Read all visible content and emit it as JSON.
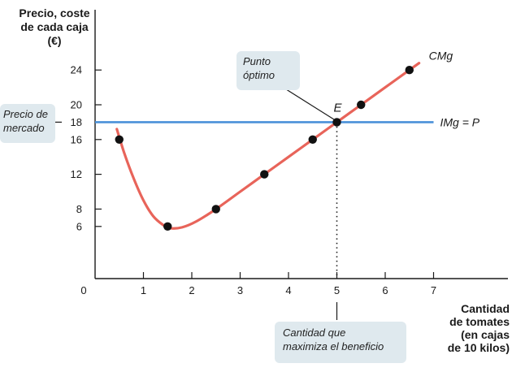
{
  "chart_data": {
    "type": "line",
    "ylabel_lines": [
      "Precio, coste",
      "de cada caja",
      "(€)"
    ],
    "xlabel_lines": [
      "Cantidad",
      "de tomates",
      "(en cajas",
      "de 10 kilos)"
    ],
    "x_ticks": [
      0,
      1,
      2,
      3,
      4,
      5,
      6,
      7
    ],
    "y_ticks": [
      6,
      8,
      12,
      16,
      18,
      20,
      24
    ],
    "xlim": [
      0,
      8.5
    ],
    "ylim": [
      0,
      28
    ],
    "grid": false,
    "series": [
      {
        "name": "CMg",
        "color": "#e8645a",
        "curve": [
          [
            0.45,
            17.2
          ],
          [
            0.6,
            14.5
          ],
          [
            0.8,
            11.5
          ],
          [
            1.0,
            9.0
          ],
          [
            1.2,
            7.2
          ],
          [
            1.4,
            6.2
          ],
          [
            1.55,
            5.8
          ],
          [
            1.8,
            5.9
          ],
          [
            2.1,
            6.6
          ],
          [
            2.5,
            8.0
          ],
          [
            3.0,
            10.0
          ],
          [
            3.5,
            12.0
          ],
          [
            4.0,
            14.0
          ],
          [
            4.5,
            16.0
          ],
          [
            5.0,
            18.0
          ],
          [
            5.5,
            20.0
          ],
          [
            6.0,
            22.0
          ],
          [
            6.5,
            24.0
          ],
          [
            6.7,
            24.8
          ]
        ],
        "points": [
          [
            0.5,
            16
          ],
          [
            1.5,
            6
          ],
          [
            2.5,
            8
          ],
          [
            3.5,
            12
          ],
          [
            4.5,
            16
          ],
          [
            5,
            18
          ],
          [
            5.5,
            20
          ],
          [
            6.5,
            24
          ]
        ]
      },
      {
        "name": "IMg = P",
        "color": "#4a90d9",
        "y": 18,
        "x_range": [
          0,
          7
        ]
      }
    ],
    "optimum": {
      "label": "E",
      "x": 5,
      "y": 18
    },
    "annotations": {
      "market_price": [
        "Precio de",
        "mercado"
      ],
      "optimal_point": [
        "Punto",
        "óptimo"
      ],
      "profit_quantity": [
        "Cantidad que",
        "maximiza el beneficio"
      ]
    }
  },
  "colors": {
    "axis": "#1a1a1a",
    "callout_bg": "#dfe9ee"
  }
}
